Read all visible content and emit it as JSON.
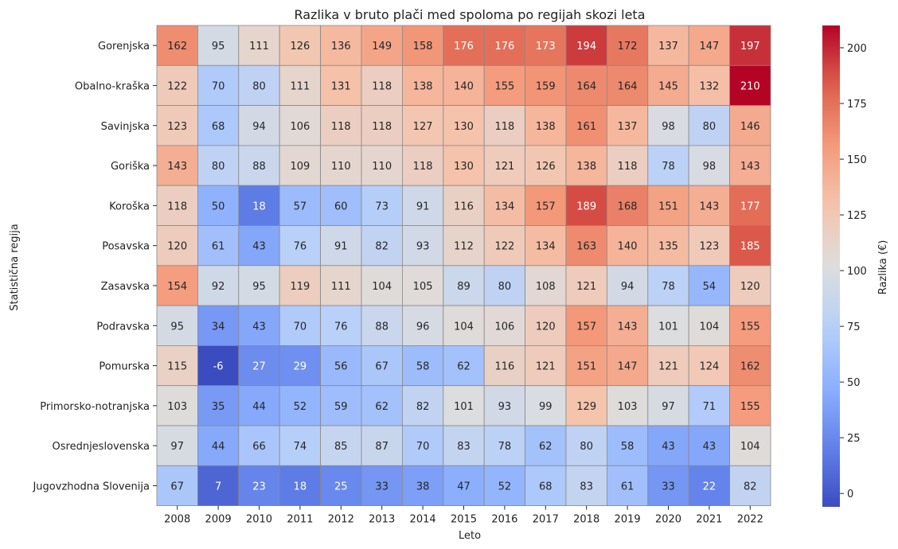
{
  "chart_data": {
    "type": "heatmap",
    "title": "Razlika v bruto plači med spoloma po regijah skozi leta",
    "xlabel": "Leto",
    "ylabel": "Statistična regija",
    "colorbar_label": "Razlika (€)",
    "colormap": "coolwarm",
    "value_range": [
      -6,
      210
    ],
    "colorbar_ticks": [
      0,
      25,
      50,
      75,
      100,
      125,
      150,
      175,
      200
    ],
    "x": [
      "2008",
      "2009",
      "2010",
      "2011",
      "2012",
      "2013",
      "2014",
      "2015",
      "2016",
      "2017",
      "2018",
      "2019",
      "2020",
      "2021",
      "2022"
    ],
    "y": [
      "Gorenjska",
      "Obalno-kraška",
      "Savinjska",
      "Goriška",
      "Koroška",
      "Posavska",
      "Zasavska",
      "Podravska",
      "Pomurska",
      "Primorsko-notranjska",
      "Osrednjeslovenska",
      "Jugovzhodna Slovenija"
    ],
    "values": [
      [
        162,
        95,
        111,
        126,
        136,
        149,
        158,
        176,
        176,
        173,
        194,
        172,
        137,
        147,
        197
      ],
      [
        122,
        70,
        80,
        111,
        131,
        118,
        138,
        140,
        155,
        159,
        164,
        164,
        145,
        132,
        210
      ],
      [
        123,
        68,
        94,
        106,
        118,
        118,
        127,
        130,
        118,
        138,
        161,
        137,
        98,
        80,
        146
      ],
      [
        143,
        80,
        88,
        109,
        110,
        110,
        118,
        130,
        121,
        126,
        138,
        118,
        78,
        98,
        143
      ],
      [
        118,
        50,
        18,
        57,
        60,
        73,
        91,
        116,
        134,
        157,
        189,
        168,
        151,
        143,
        177
      ],
      [
        120,
        61,
        43,
        76,
        91,
        82,
        93,
        112,
        122,
        134,
        163,
        140,
        135,
        123,
        185
      ],
      [
        154,
        92,
        95,
        119,
        111,
        104,
        105,
        89,
        80,
        108,
        121,
        94,
        78,
        54,
        120
      ],
      [
        95,
        34,
        43,
        70,
        76,
        88,
        96,
        104,
        106,
        120,
        157,
        143,
        101,
        104,
        155
      ],
      [
        115,
        -6,
        27,
        29,
        56,
        67,
        58,
        62,
        116,
        121,
        151,
        147,
        121,
        124,
        162
      ],
      [
        103,
        35,
        44,
        52,
        59,
        62,
        82,
        101,
        93,
        99,
        129,
        103,
        97,
        71,
        155
      ],
      [
        97,
        44,
        66,
        74,
        85,
        87,
        70,
        83,
        78,
        62,
        80,
        58,
        43,
        43,
        104
      ],
      [
        67,
        7,
        23,
        18,
        25,
        33,
        38,
        47,
        52,
        68,
        83,
        61,
        33,
        22,
        82
      ]
    ]
  }
}
